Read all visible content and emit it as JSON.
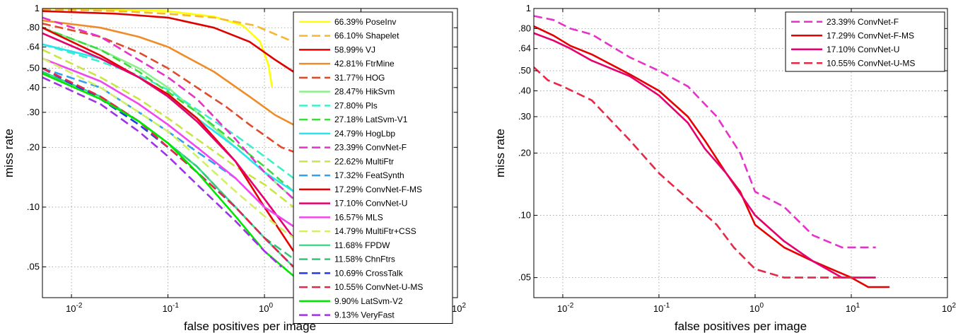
{
  "chart_data": [
    {
      "type": "line",
      "xlabel": "false positives per image",
      "ylabel": "miss rate",
      "x_scale": "log",
      "y_scale": "log",
      "xlim": [
        0.005,
        100
      ],
      "ylim": [
        0.035,
        1
      ],
      "x_ticks": [
        {
          "v": 0.01,
          "b": "10",
          "e": "-2"
        },
        {
          "v": 0.1,
          "b": "10",
          "e": "-1"
        },
        {
          "v": 1,
          "b": "10",
          "e": "0"
        },
        {
          "v": 10,
          "b": "10",
          "e": "1"
        },
        {
          "v": 100,
          "b": "10",
          "e": "2"
        }
      ],
      "y_ticks": [
        {
          "v": 1,
          "label": "1"
        },
        {
          "v": 0.8,
          "label": ".80"
        },
        {
          "v": 0.64,
          "label": ".64"
        },
        {
          "v": 0.5,
          "label": ".50"
        },
        {
          "v": 0.4,
          "label": ".40"
        },
        {
          "v": 0.3,
          "label": ".30"
        },
        {
          "v": 0.2,
          "label": ".20"
        },
        {
          "v": 0.1,
          "label": ".10"
        },
        {
          "v": 0.05,
          "label": ".05"
        }
      ],
      "grid": true,
      "legend_position": "top-right",
      "series": [
        {
          "name": "66.39% PoseInv",
          "color": "#ffff00",
          "dash": false,
          "x": [
            0.005,
            0.02,
            0.1,
            0.3,
            0.6,
            0.9,
            1.1,
            1.2
          ],
          "y": [
            1.0,
            0.99,
            0.97,
            0.91,
            0.82,
            0.68,
            0.52,
            0.4
          ]
        },
        {
          "name": "66.10% Shapelet",
          "color": "#f5b82e",
          "dash": true,
          "x": [
            0.005,
            0.03,
            0.1,
            0.3,
            0.8,
            1.5,
            2
          ],
          "y": [
            0.99,
            0.97,
            0.94,
            0.9,
            0.82,
            0.72,
            0.68
          ]
        },
        {
          "name": "58.99% VJ",
          "color": "#e00000",
          "dash": false,
          "x": [
            0.005,
            0.03,
            0.1,
            0.3,
            0.7,
            1.3,
            2
          ],
          "y": [
            0.97,
            0.94,
            0.9,
            0.8,
            0.68,
            0.55,
            0.48
          ]
        },
        {
          "name": "42.81% FtrMine",
          "color": "#f08c28",
          "dash": false,
          "x": [
            0.005,
            0.02,
            0.05,
            0.1,
            0.3,
            0.7,
            1.3,
            2
          ],
          "y": [
            0.87,
            0.8,
            0.72,
            0.64,
            0.48,
            0.36,
            0.29,
            0.26
          ]
        },
        {
          "name": "31.77% HOG",
          "color": "#e04a2a",
          "dash": true,
          "x": [
            0.005,
            0.02,
            0.05,
            0.1,
            0.2,
            0.4,
            0.7,
            1.0,
            1.5,
            2
          ],
          "y": [
            0.84,
            0.72,
            0.6,
            0.5,
            0.4,
            0.32,
            0.26,
            0.23,
            0.2,
            0.19
          ]
        },
        {
          "name": "28.47% HikSvm",
          "color": "#8cf08c",
          "dash": false,
          "x": [
            0.005,
            0.02,
            0.05,
            0.1,
            0.2,
            0.5,
            1,
            2
          ],
          "y": [
            0.8,
            0.62,
            0.5,
            0.4,
            0.3,
            0.2,
            0.15,
            0.11
          ]
        },
        {
          "name": "27.80% Pls",
          "color": "#3cf0c8",
          "dash": true,
          "x": [
            0.005,
            0.02,
            0.05,
            0.1,
            0.2,
            0.5,
            1,
            2
          ],
          "y": [
            0.66,
            0.54,
            0.46,
            0.39,
            0.31,
            0.23,
            0.18,
            0.14
          ]
        },
        {
          "name": "27.18% LatSvm-V1",
          "color": "#3cdc3c",
          "dash": true,
          "x": [
            0.005,
            0.02,
            0.05,
            0.1,
            0.2,
            0.5,
            1,
            2
          ],
          "y": [
            0.8,
            0.62,
            0.48,
            0.38,
            0.3,
            0.21,
            0.16,
            0.12
          ]
        },
        {
          "name": "24.79% HogLbp",
          "color": "#28e6f0",
          "dash": false,
          "x": [
            0.005,
            0.02,
            0.05,
            0.1,
            0.2,
            0.5,
            1,
            2
          ],
          "y": [
            0.66,
            0.56,
            0.45,
            0.36,
            0.28,
            0.2,
            0.15,
            0.12
          ]
        },
        {
          "name": "23.39% ConvNet-F",
          "color": "#e632c8",
          "dash": true,
          "x": [
            0.005,
            0.02,
            0.05,
            0.1,
            0.2,
            0.5,
            1,
            2
          ],
          "y": [
            0.9,
            0.72,
            0.55,
            0.45,
            0.35,
            0.22,
            0.15,
            0.11
          ]
        },
        {
          "name": "22.62% MultiFtr",
          "color": "#c8e646",
          "dash": true,
          "x": [
            0.005,
            0.02,
            0.05,
            0.1,
            0.2,
            0.5,
            1,
            2
          ],
          "y": [
            0.62,
            0.45,
            0.35,
            0.28,
            0.22,
            0.16,
            0.13,
            0.1
          ]
        },
        {
          "name": "17.32% FeatSynth",
          "color": "#32a0f0",
          "dash": true,
          "x": [
            0.005,
            0.02,
            0.05,
            0.1,
            0.2,
            0.5,
            1,
            2
          ],
          "y": [
            0.5,
            0.4,
            0.3,
            0.24,
            0.19,
            0.14,
            0.1,
            0.08
          ]
        },
        {
          "name": "17.29% ConvNet-F-MS",
          "color": "#e60000",
          "dash": false,
          "x": [
            0.005,
            0.02,
            0.05,
            0.1,
            0.2,
            0.5,
            1,
            2
          ],
          "y": [
            0.8,
            0.58,
            0.45,
            0.37,
            0.28,
            0.17,
            0.1,
            0.06
          ]
        },
        {
          "name": "17.10% ConvNet-U",
          "color": "#e6006e",
          "dash": false,
          "x": [
            0.005,
            0.02,
            0.05,
            0.1,
            0.2,
            0.5,
            1,
            2
          ],
          "y": [
            0.75,
            0.56,
            0.45,
            0.36,
            0.27,
            0.17,
            0.11,
            0.07
          ]
        },
        {
          "name": "16.57% MLS",
          "color": "#f046f0",
          "dash": false,
          "x": [
            0.005,
            0.02,
            0.05,
            0.1,
            0.2,
            0.5,
            1,
            2
          ],
          "y": [
            0.56,
            0.43,
            0.33,
            0.26,
            0.2,
            0.14,
            0.1,
            0.08
          ]
        },
        {
          "name": "14.79% MultiFtr+CSS",
          "color": "#d2f064",
          "dash": true,
          "x": [
            0.005,
            0.02,
            0.05,
            0.1,
            0.2,
            0.5,
            1,
            2
          ],
          "y": [
            0.56,
            0.4,
            0.3,
            0.24,
            0.18,
            0.12,
            0.09,
            0.07
          ]
        },
        {
          "name": "11.68% FPDW",
          "color": "#3cdc8c",
          "dash": false,
          "x": [
            0.005,
            0.02,
            0.05,
            0.1,
            0.2,
            0.5,
            1,
            2
          ],
          "y": [
            0.48,
            0.36,
            0.27,
            0.21,
            0.16,
            0.1,
            0.07,
            0.05
          ]
        },
        {
          "name": "11.58% ChnFtrs",
          "color": "#32c878",
          "dash": true,
          "x": [
            0.005,
            0.02,
            0.05,
            0.1,
            0.2,
            0.5,
            1,
            2
          ],
          "y": [
            0.48,
            0.36,
            0.27,
            0.21,
            0.16,
            0.1,
            0.07,
            0.055
          ]
        },
        {
          "name": "10.69% CrossTalk",
          "color": "#1e3ce6",
          "dash": true,
          "x": [
            0.005,
            0.02,
            0.05,
            0.1,
            0.2,
            0.5,
            1,
            2
          ],
          "y": [
            0.5,
            0.35,
            0.26,
            0.2,
            0.15,
            0.1,
            0.07,
            0.05
          ]
        },
        {
          "name": "10.55% ConvNet-U-MS",
          "color": "#e62846",
          "dash": true,
          "x": [
            0.005,
            0.02,
            0.05,
            0.1,
            0.2,
            0.5,
            1,
            2
          ],
          "y": [
            0.5,
            0.36,
            0.27,
            0.2,
            0.15,
            0.1,
            0.07,
            0.05
          ]
        },
        {
          "name": "9.90% LatSvm-V2",
          "color": "#00e600",
          "dash": false,
          "x": [
            0.005,
            0.02,
            0.05,
            0.1,
            0.2,
            0.5,
            1,
            2,
            3,
            4
          ],
          "y": [
            0.47,
            0.35,
            0.27,
            0.21,
            0.15,
            0.09,
            0.06,
            0.045,
            0.04,
            0.035
          ]
        },
        {
          "name": "9.13% VeryFast",
          "color": "#a032e6",
          "dash": true,
          "x": [
            0.005,
            0.02,
            0.05,
            0.1,
            0.2,
            0.5,
            1,
            1.5
          ],
          "y": [
            0.45,
            0.33,
            0.24,
            0.18,
            0.13,
            0.085,
            0.06,
            0.05
          ]
        }
      ]
    },
    {
      "type": "line",
      "xlabel": "false positives per image",
      "ylabel": "miss rate",
      "x_scale": "log",
      "y_scale": "log",
      "xlim": [
        0.005,
        100
      ],
      "ylim": [
        0.04,
        1
      ],
      "x_ticks": [
        {
          "v": 0.01,
          "b": "10",
          "e": "-2"
        },
        {
          "v": 0.1,
          "b": "10",
          "e": "-1"
        },
        {
          "v": 1,
          "b": "10",
          "e": "0"
        },
        {
          "v": 10,
          "b": "10",
          "e": "1"
        },
        {
          "v": 100,
          "b": "10",
          "e": "2"
        }
      ],
      "y_ticks": [
        {
          "v": 1,
          "label": "1"
        },
        {
          "v": 0.8,
          "label": ".80"
        },
        {
          "v": 0.64,
          "label": ".64"
        },
        {
          "v": 0.5,
          "label": ".50"
        },
        {
          "v": 0.4,
          "label": ".40"
        },
        {
          "v": 0.3,
          "label": ".30"
        },
        {
          "v": 0.2,
          "label": ".20"
        },
        {
          "v": 0.1,
          "label": ".10"
        },
        {
          "v": 0.05,
          "label": ".05"
        }
      ],
      "grid": true,
      "legend_position": "top-right",
      "series": [
        {
          "name": "23.39% ConvNet-F",
          "color": "#e632c8",
          "dash": true,
          "x": [
            0.005,
            0.008,
            0.012,
            0.02,
            0.05,
            0.1,
            0.2,
            0.4,
            0.7,
            1.0,
            2,
            4,
            8,
            18
          ],
          "y": [
            0.92,
            0.88,
            0.8,
            0.75,
            0.58,
            0.5,
            0.42,
            0.3,
            0.2,
            0.13,
            0.11,
            0.08,
            0.07,
            0.07
          ]
        },
        {
          "name": "17.29% ConvNet-F-MS",
          "color": "#e60000",
          "dash": false,
          "x": [
            0.005,
            0.008,
            0.012,
            0.02,
            0.05,
            0.1,
            0.2,
            0.3,
            0.5,
            0.7,
            1.0,
            2,
            4,
            10,
            15,
            25
          ],
          "y": [
            0.82,
            0.74,
            0.66,
            0.6,
            0.48,
            0.4,
            0.3,
            0.23,
            0.16,
            0.13,
            0.09,
            0.07,
            0.06,
            0.05,
            0.045,
            0.045
          ]
        },
        {
          "name": "17.10% ConvNet-U",
          "color": "#e6006e",
          "dash": false,
          "x": [
            0.005,
            0.008,
            0.012,
            0.02,
            0.05,
            0.1,
            0.2,
            0.3,
            0.5,
            1.0,
            2,
            4,
            8,
            18
          ],
          "y": [
            0.76,
            0.7,
            0.64,
            0.56,
            0.47,
            0.38,
            0.28,
            0.21,
            0.16,
            0.1,
            0.075,
            0.06,
            0.05,
            0.05
          ]
        },
        {
          "name": "10.55% ConvNet-U-MS",
          "color": "#e62846",
          "dash": true,
          "x": [
            0.005,
            0.007,
            0.01,
            0.02,
            0.05,
            0.1,
            0.2,
            0.4,
            0.6,
            1.0,
            2,
            4,
            8,
            12
          ],
          "y": [
            0.52,
            0.45,
            0.42,
            0.36,
            0.23,
            0.16,
            0.12,
            0.09,
            0.07,
            0.055,
            0.05,
            0.05,
            0.05,
            0.05
          ]
        }
      ]
    }
  ]
}
